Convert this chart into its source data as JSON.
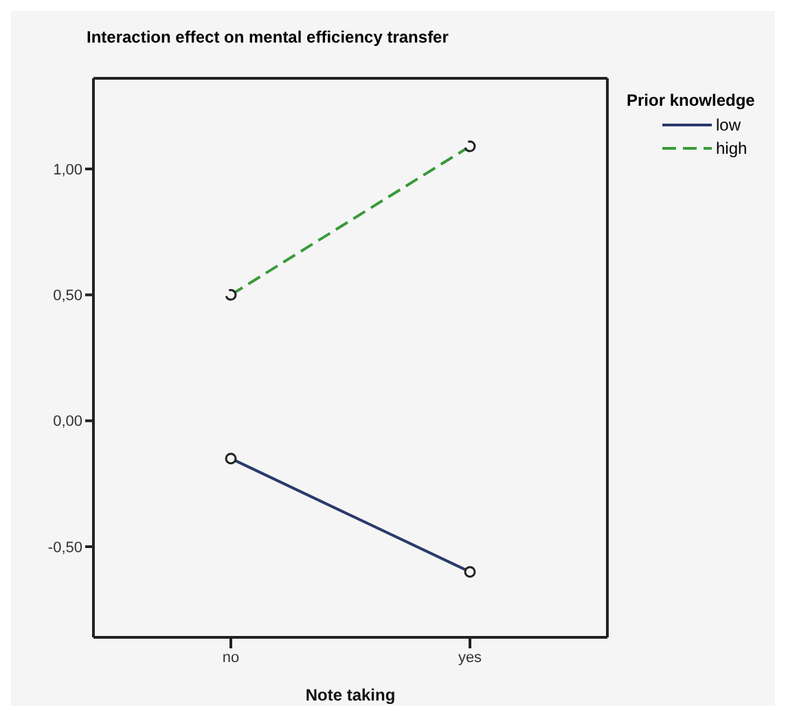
{
  "chart_data": {
    "type": "line",
    "title": "Interaction effect on mental efficiency transfer",
    "xlabel": "Note taking",
    "legend_title": "Prior knowledge",
    "categories": [
      "no",
      "yes"
    ],
    "series": [
      {
        "name": "low",
        "color": "#2b3a6b",
        "values": [
          -0.15,
          -0.6
        ],
        "line_style": "solid"
      },
      {
        "name": "high",
        "color": "#3a9a3a",
        "values": [
          0.5,
          1.09
        ],
        "line_style": "dashed"
      }
    ],
    "ylim": [
      -0.86,
      1.36
    ],
    "yticks": [
      {
        "value": -0.5,
        "label": "-0,50"
      },
      {
        "value": 0,
        "label": "0,00"
      },
      {
        "value": 0.5,
        "label": "0,50"
      },
      {
        "value": 1,
        "label": "1,00"
      }
    ],
    "marker": "circle",
    "legend": "top right"
  }
}
